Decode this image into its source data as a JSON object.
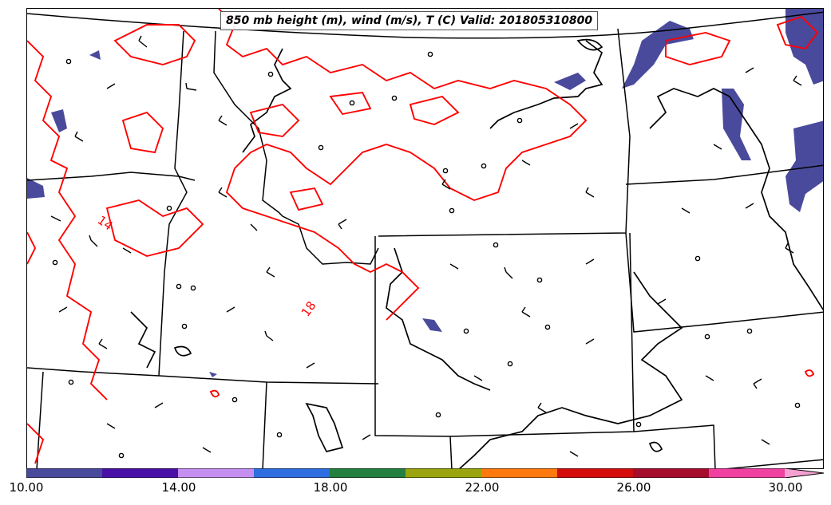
{
  "title": "850 mb height (m), wind (m/s), T (C) Valid: 201805310800",
  "contour_labels": [
    "14",
    "18"
  ],
  "colorbar": {
    "ticks": [
      "10.00",
      "14.00",
      "18.00",
      "22.00",
      "26.00",
      "30.00"
    ],
    "colors": [
      "#4a4a9c",
      "#4a11a8",
      "#c48ff0",
      "#2f6ee0",
      "#238040",
      "#9aa40e",
      "#ff7a0e",
      "#d50c0c",
      "#a60c2c",
      "#f040a0",
      "#f4a0d0"
    ]
  },
  "colors": {
    "temperature_contour": "#ff0000",
    "height_contour": "#000000",
    "state_borders": "#000000",
    "shading_low": "#4a4a9c"
  }
}
